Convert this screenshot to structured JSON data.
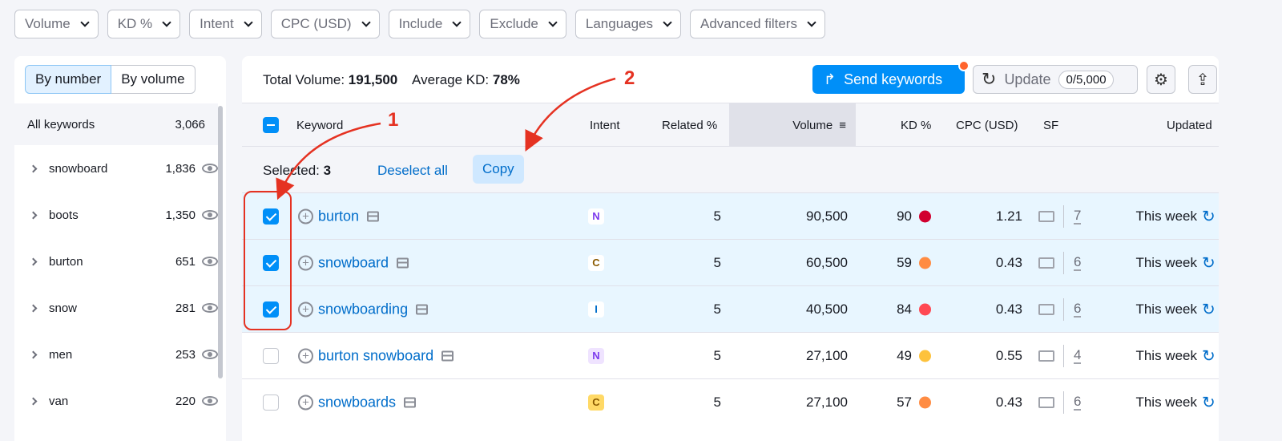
{
  "filters": [
    "Volume",
    "KD %",
    "Intent",
    "CPC (USD)",
    "Include",
    "Exclude",
    "Languages",
    "Advanced filters"
  ],
  "sidebar": {
    "by_number": "By number",
    "by_volume": "By volume",
    "all_label": "All keywords",
    "all_count": "3,066",
    "groups": [
      {
        "name": "snowboard",
        "count": "1,836"
      },
      {
        "name": "boots",
        "count": "1,350"
      },
      {
        "name": "burton",
        "count": "651"
      },
      {
        "name": "snow",
        "count": "281"
      },
      {
        "name": "men",
        "count": "253"
      },
      {
        "name": "van",
        "count": "220"
      }
    ]
  },
  "summary": {
    "total_label": "Total Volume:",
    "total": "191,500",
    "kd_label": "Average KD:",
    "kd": "78%"
  },
  "toolbar": {
    "send": "Send keywords",
    "update": "Update",
    "quota": "0/5,000"
  },
  "columns": {
    "keyword": "Keyword",
    "intent": "Intent",
    "related": "Related %",
    "volume": "Volume",
    "kd": "KD %",
    "cpc": "CPC (USD)",
    "sf": "SF",
    "updated": "Updated"
  },
  "selection": {
    "label": "Selected:",
    "count": "3",
    "deselect": "Deselect all",
    "copy": "Copy"
  },
  "annotations": {
    "one": "1",
    "two": "2"
  },
  "intent_colors": {
    "N": {
      "bg": "#efe3ff",
      "fg": "#7c3aed"
    },
    "C": {
      "bg": "#ffd966",
      "fg": "#8a5a00"
    },
    "I": {
      "bg": "#e2f1ff",
      "fg": "#006dca"
    }
  },
  "rows": [
    {
      "keyword": "burton",
      "selected": true,
      "intent": "N",
      "related": "5",
      "volume": "90,500",
      "kd": "90",
      "kd_color": "#d1002f",
      "cpc": "1.21",
      "sf": "7",
      "updated": "This week"
    },
    {
      "keyword": "snowboard",
      "selected": true,
      "intent": "C",
      "related": "5",
      "volume": "60,500",
      "kd": "59",
      "kd_color": "#ff8c43",
      "cpc": "0.43",
      "sf": "6",
      "updated": "This week"
    },
    {
      "keyword": "snowboarding",
      "selected": true,
      "intent": "I",
      "related": "5",
      "volume": "40,500",
      "kd": "84",
      "kd_color": "#ff4953",
      "cpc": "0.43",
      "sf": "6",
      "updated": "This week"
    },
    {
      "keyword": "burton snowboard",
      "selected": false,
      "intent": "N",
      "related": "5",
      "volume": "27,100",
      "kd": "49",
      "kd_color": "#fdc23c",
      "cpc": "0.55",
      "sf": "4",
      "updated": "This week"
    },
    {
      "keyword": "snowboards",
      "selected": false,
      "intent": "C",
      "related": "5",
      "volume": "27,100",
      "kd": "57",
      "kd_color": "#ff8c43",
      "cpc": "0.43",
      "sf": "6",
      "updated": "This week"
    }
  ]
}
